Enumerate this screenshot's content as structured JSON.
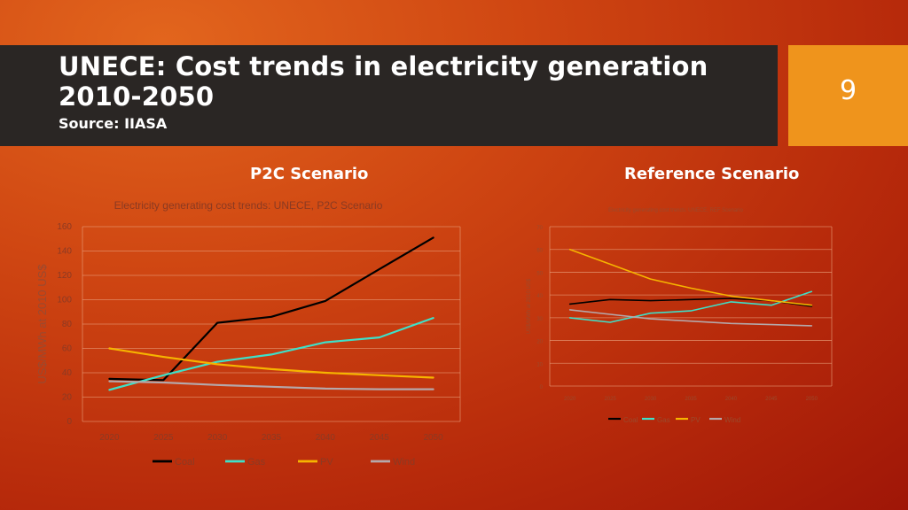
{
  "slide": {
    "title_line1": "UNECE: Cost trends in electricity generation",
    "title_line2": "2010-2050",
    "source": "Source: IIASA",
    "page_number": "9",
    "left_heading": "P2C Scenario",
    "right_heading": "Reference Scenario"
  },
  "colors": {
    "Coal": "#000000",
    "Gas": "#3ee0c8",
    "PV": "#f6b400",
    "Wind": "#b5a8aa"
  },
  "chart_data": [
    {
      "type": "line",
      "title": "Electricity generating cost trends: UNECE, P2C Scenario",
      "ylabel": "US$/MWh at 2010 US$",
      "xlabel": "",
      "categories": [
        "2020",
        "2025",
        "2030",
        "2035",
        "2040",
        "2045",
        "2050"
      ],
      "ylim": [
        0,
        160
      ],
      "yticks": [
        0,
        20,
        40,
        60,
        80,
        100,
        120,
        140,
        160
      ],
      "grid": true,
      "legend": "bottom",
      "series": [
        {
          "name": "Coal",
          "values": [
            35,
            34,
            81,
            86,
            99,
            125,
            151
          ]
        },
        {
          "name": "Gas",
          "values": [
            26,
            38,
            49,
            55,
            65,
            69,
            85
          ]
        },
        {
          "name": "PV",
          "values": [
            60,
            53,
            47,
            43,
            40,
            38,
            36
          ]
        },
        {
          "name": "Wind",
          "values": [
            33,
            32,
            30,
            28.5,
            27,
            26.5,
            26.5
          ]
        }
      ]
    },
    {
      "type": "line",
      "title": "Electricity generating cost trends: UNECE, REF Scenario",
      "ylabel": "US$/MWh at 2010 US$",
      "xlabel": "",
      "categories": [
        "2020",
        "2025",
        "2030",
        "2035",
        "2040",
        "2045",
        "2050"
      ],
      "ylim": [
        0,
        70
      ],
      "yticks": [
        0,
        10,
        20,
        30,
        40,
        50,
        60,
        70
      ],
      "grid": true,
      "legend": "bottom",
      "series": [
        {
          "name": "Coal",
          "values": [
            36,
            38,
            37.5,
            38,
            38.5,
            37.5,
            35
          ]
        },
        {
          "name": "Gas",
          "values": [
            30,
            28,
            32,
            33,
            37,
            35.5,
            41.5
          ]
        },
        {
          "name": "PV",
          "values": [
            60,
            53.5,
            47,
            43,
            39.5,
            37.5,
            35.5
          ]
        },
        {
          "name": "Wind",
          "values": [
            33.5,
            31.5,
            29.5,
            28.5,
            27.5,
            27,
            26.5
          ]
        }
      ]
    }
  ]
}
